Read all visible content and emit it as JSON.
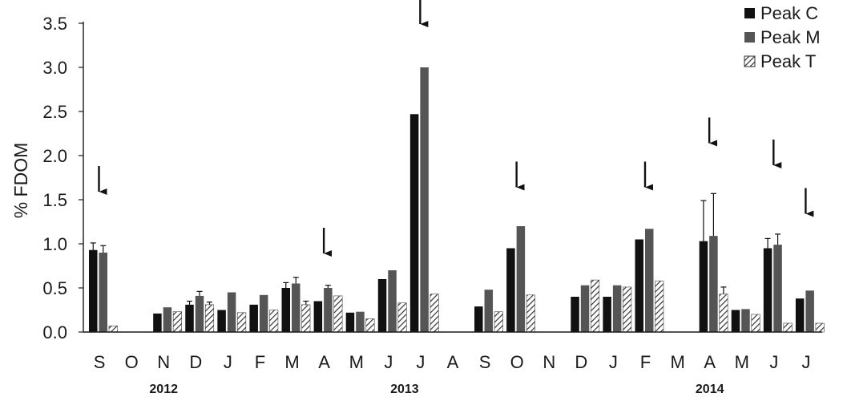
{
  "chart_data": {
    "type": "bar",
    "ylabel": "% FDOM",
    "xlabel": "",
    "ylim": [
      0,
      3.5
    ],
    "yticks": [
      "0.0",
      "0.5",
      "1.0",
      "1.5",
      "2.0",
      "2.5",
      "3.0",
      "3.5"
    ],
    "categories": [
      "S",
      "O",
      "N",
      "D",
      "J",
      "F",
      "M",
      "A",
      "M",
      "J",
      "J",
      "A",
      "S",
      "O",
      "N",
      "D",
      "J",
      "F",
      "M",
      "A",
      "M",
      "J",
      "J"
    ],
    "year_labels": [
      {
        "text": "2012",
        "category_index": 2
      },
      {
        "text": "2013",
        "category_index": 9.5
      },
      {
        "text": "2014",
        "category_index": 19
      }
    ],
    "series": [
      {
        "name": "Peak C",
        "pattern": "solid-black",
        "values": [
          0.93,
          null,
          0.21,
          0.31,
          0.25,
          0.31,
          0.5,
          0.35,
          0.22,
          0.6,
          2.47,
          null,
          0.29,
          0.95,
          null,
          0.4,
          0.4,
          1.05,
          null,
          1.03,
          0.25,
          0.95,
          0.38
        ],
        "errors": [
          0.08,
          null,
          0,
          0.04,
          0,
          0,
          0.06,
          0,
          0,
          0,
          0,
          null,
          0,
          0,
          null,
          0,
          0,
          0,
          null,
          0.46,
          0,
          0.11,
          0
        ]
      },
      {
        "name": "Peak M",
        "pattern": "solid-gray",
        "values": [
          0.9,
          null,
          0.28,
          0.41,
          0.45,
          0.42,
          0.55,
          0.5,
          0.23,
          0.7,
          3.0,
          null,
          0.48,
          1.2,
          null,
          0.53,
          0.53,
          1.17,
          null,
          1.09,
          0.26,
          0.99,
          0.47
        ],
        "errors": [
          0.08,
          null,
          0,
          0.05,
          0,
          0,
          0.07,
          0.03,
          0,
          0,
          0,
          null,
          0,
          0,
          null,
          0,
          0,
          0,
          null,
          0.48,
          0,
          0.12,
          0
        ]
      },
      {
        "name": "Peak T",
        "pattern": "hatched",
        "values": [
          0.07,
          null,
          0.23,
          0.31,
          0.22,
          0.25,
          0.31,
          0.41,
          0.15,
          0.33,
          0.43,
          null,
          0.23,
          0.42,
          null,
          0.59,
          0.51,
          0.58,
          null,
          0.43,
          0.2,
          0.1,
          0.1
        ],
        "errors": [
          0,
          null,
          0,
          0.03,
          0,
          0,
          0.04,
          0,
          0,
          0,
          0,
          null,
          0,
          0,
          null,
          0,
          0,
          0,
          null,
          0.08,
          0,
          0,
          0
        ]
      }
    ],
    "arrows": [
      {
        "category_index": 0,
        "value": 1.5
      },
      {
        "category_index": 7,
        "value": 0.8
      },
      {
        "category_index": 10,
        "value": 3.4
      },
      {
        "category_index": 13,
        "value": 1.55
      },
      {
        "category_index": 17,
        "value": 1.55
      },
      {
        "category_index": 19,
        "value": 2.05
      },
      {
        "category_index": 21,
        "value": 1.8
      },
      {
        "category_index": 22,
        "value": 1.25
      }
    ],
    "legend_position": "top-right",
    "grid": false
  },
  "colors": {
    "peak_c": "#111111",
    "peak_m": "#555555",
    "peak_t_hatch": "#333333",
    "axis": "#1a1a1a"
  }
}
